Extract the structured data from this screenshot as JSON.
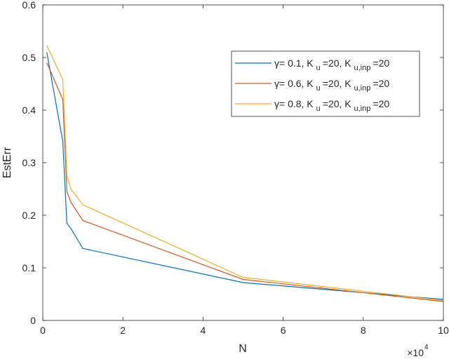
{
  "chart_data": {
    "type": "line",
    "xlabel": "N",
    "ylabel": "EstErr",
    "x_exponent": {
      "base": "×10",
      "power": "4"
    },
    "xlim": [
      0,
      100000
    ],
    "ylim": [
      0,
      0.6
    ],
    "x_ticks": [
      0,
      20000,
      40000,
      60000,
      80000,
      100000
    ],
    "x_tick_labels": [
      "0",
      "2",
      "4",
      "6",
      "8",
      "10"
    ],
    "y_ticks": [
      0,
      0.1,
      0.2,
      0.3,
      0.4,
      0.5,
      0.6
    ],
    "y_tick_labels": [
      "0",
      "0.1",
      "0.2",
      "0.3",
      "0.4",
      "0.5",
      "0.6"
    ],
    "grid": false,
    "legend_position": "top-right",
    "series": [
      {
        "name": "γ= 0.1, K u=20, K u,inp =20",
        "legend": {
          "gamma": "γ",
          "text1": "= 0.1, K",
          "sub1": "u",
          "text2": "=20, K",
          "sub2": "u,inp",
          "text3": "=20"
        },
        "color": "#0072BD",
        "x": [
          1000,
          5000,
          6000,
          7000,
          10000,
          50000,
          100000
        ],
        "y": [
          0.51,
          0.34,
          0.185,
          0.175,
          0.137,
          0.072,
          0.04
        ]
      },
      {
        "name": "γ= 0.6, K u=20, K u,inp =20",
        "legend": {
          "gamma": "γ",
          "text1": "= 0.6, K",
          "sub1": "u",
          "text2": "=20, K",
          "sub2": "u,inp",
          "text3": "=20"
        },
        "color": "#D95319",
        "x": [
          1000,
          5000,
          6000,
          7000,
          10000,
          50000,
          100000
        ],
        "y": [
          0.49,
          0.42,
          0.245,
          0.225,
          0.19,
          0.078,
          0.036
        ]
      },
      {
        "name": "γ= 0.8, K u=20, K u,inp =20",
        "legend": {
          "gamma": "γ",
          "text1": "= 0.8, K",
          "sub1": "u",
          "text2": "=20, K",
          "sub2": "u,inp",
          "text3": "=20"
        },
        "color": "#EDB120",
        "x": [
          1000,
          5000,
          6000,
          7000,
          10000,
          50000,
          100000
        ],
        "y": [
          0.523,
          0.458,
          0.275,
          0.25,
          0.22,
          0.082,
          0.038
        ]
      }
    ]
  }
}
